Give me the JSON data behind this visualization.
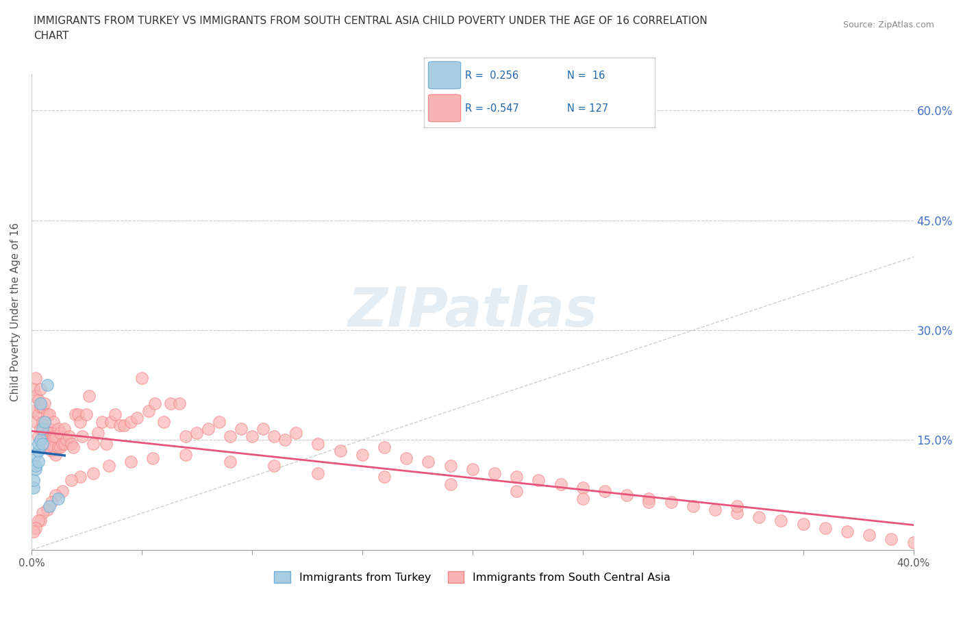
{
  "title_line1": "IMMIGRANTS FROM TURKEY VS IMMIGRANTS FROM SOUTH CENTRAL ASIA CHILD POVERTY UNDER THE AGE OF 16 CORRELATION",
  "title_line2": "CHART",
  "source_text": "Source: ZipAtlas.com",
  "ylabel": "Child Poverty Under the Age of 16",
  "xlim": [
    0.0,
    0.4
  ],
  "ylim": [
    0.0,
    0.65
  ],
  "xtick_vals": [
    0.0,
    0.05,
    0.1,
    0.15,
    0.2,
    0.25,
    0.3,
    0.35,
    0.4
  ],
  "xticklabels": [
    "0.0%",
    "",
    "",
    "",
    "",
    "",
    "",
    "",
    "40.0%"
  ],
  "ytick_vals": [
    0.0,
    0.15,
    0.3,
    0.45,
    0.6
  ],
  "yticklabels_right": [
    "",
    "15.0%",
    "30.0%",
    "45.0%",
    "60.0%"
  ],
  "turkey_color": "#a8cce0",
  "turkey_edge_color": "#6baed6",
  "sca_color": "#f8b4b4",
  "sca_edge_color": "#f48484",
  "trend_turkey_color": "#2166ac",
  "trend_sca_color": "#e8537a",
  "diag_color": "#bbbbbb",
  "watermark": "ZIPatlas",
  "legend_turkey_R": "R =  0.256",
  "legend_turkey_N": "N =  16",
  "legend_sca_R": "R = -0.547",
  "legend_sca_N": "N = 127",
  "turkey_x": [
    0.001,
    0.001,
    0.002,
    0.002,
    0.002,
    0.003,
    0.003,
    0.003,
    0.004,
    0.004,
    0.005,
    0.005,
    0.006,
    0.007,
    0.008,
    0.012
  ],
  "turkey_y": [
    0.085,
    0.095,
    0.11,
    0.115,
    0.13,
    0.12,
    0.135,
    0.145,
    0.15,
    0.2,
    0.145,
    0.165,
    0.175,
    0.225,
    0.06,
    0.07
  ],
  "sca_x": [
    0.001,
    0.001,
    0.002,
    0.002,
    0.002,
    0.003,
    0.003,
    0.003,
    0.004,
    0.004,
    0.004,
    0.005,
    0.005,
    0.005,
    0.006,
    0.006,
    0.006,
    0.007,
    0.007,
    0.007,
    0.008,
    0.008,
    0.008,
    0.009,
    0.009,
    0.01,
    0.01,
    0.01,
    0.011,
    0.011,
    0.012,
    0.012,
    0.013,
    0.013,
    0.014,
    0.015,
    0.015,
    0.016,
    0.017,
    0.018,
    0.019,
    0.02,
    0.021,
    0.022,
    0.023,
    0.025,
    0.026,
    0.028,
    0.03,
    0.032,
    0.034,
    0.036,
    0.038,
    0.04,
    0.042,
    0.045,
    0.048,
    0.05,
    0.053,
    0.056,
    0.06,
    0.063,
    0.067,
    0.07,
    0.075,
    0.08,
    0.085,
    0.09,
    0.095,
    0.1,
    0.105,
    0.11,
    0.115,
    0.12,
    0.13,
    0.14,
    0.15,
    0.16,
    0.17,
    0.18,
    0.19,
    0.2,
    0.21,
    0.22,
    0.23,
    0.24,
    0.25,
    0.26,
    0.27,
    0.28,
    0.29,
    0.3,
    0.31,
    0.32,
    0.33,
    0.34,
    0.35,
    0.36,
    0.37,
    0.38,
    0.39,
    0.4,
    0.32,
    0.28,
    0.25,
    0.22,
    0.19,
    0.16,
    0.13,
    0.11,
    0.09,
    0.07,
    0.055,
    0.045,
    0.035,
    0.028,
    0.022,
    0.018,
    0.014,
    0.011,
    0.009,
    0.007,
    0.005,
    0.004,
    0.003,
    0.002,
    0.001
  ],
  "sca_y": [
    0.19,
    0.22,
    0.175,
    0.21,
    0.235,
    0.155,
    0.185,
    0.205,
    0.165,
    0.195,
    0.22,
    0.15,
    0.175,
    0.195,
    0.155,
    0.175,
    0.2,
    0.14,
    0.16,
    0.185,
    0.145,
    0.165,
    0.185,
    0.135,
    0.16,
    0.14,
    0.155,
    0.175,
    0.13,
    0.155,
    0.14,
    0.165,
    0.14,
    0.16,
    0.145,
    0.145,
    0.165,
    0.15,
    0.155,
    0.145,
    0.14,
    0.185,
    0.185,
    0.175,
    0.155,
    0.185,
    0.21,
    0.145,
    0.16,
    0.175,
    0.145,
    0.175,
    0.185,
    0.17,
    0.17,
    0.175,
    0.18,
    0.235,
    0.19,
    0.2,
    0.175,
    0.2,
    0.2,
    0.155,
    0.16,
    0.165,
    0.175,
    0.155,
    0.165,
    0.155,
    0.165,
    0.155,
    0.15,
    0.16,
    0.145,
    0.135,
    0.13,
    0.14,
    0.125,
    0.12,
    0.115,
    0.11,
    0.105,
    0.1,
    0.095,
    0.09,
    0.085,
    0.08,
    0.075,
    0.07,
    0.065,
    0.06,
    0.055,
    0.05,
    0.045,
    0.04,
    0.035,
    0.03,
    0.025,
    0.02,
    0.015,
    0.01,
    0.06,
    0.065,
    0.07,
    0.08,
    0.09,
    0.1,
    0.105,
    0.115,
    0.12,
    0.13,
    0.125,
    0.12,
    0.115,
    0.105,
    0.1,
    0.095,
    0.08,
    0.075,
    0.065,
    0.055,
    0.05,
    0.04,
    0.04,
    0.03,
    0.025
  ]
}
